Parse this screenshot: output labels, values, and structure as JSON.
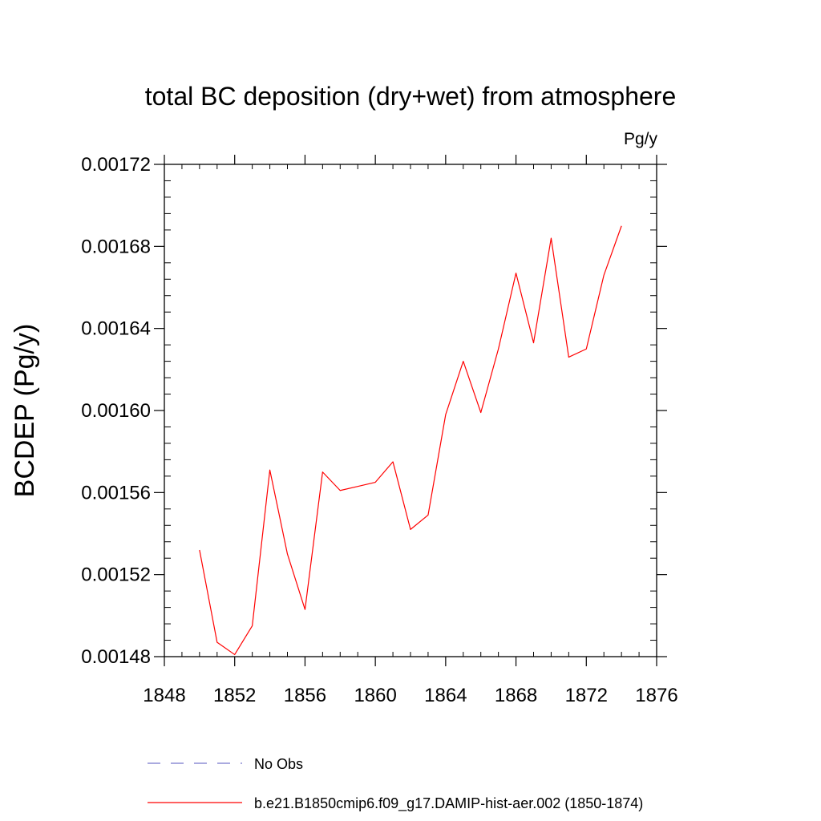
{
  "chart_data": {
    "type": "line",
    "title": "total BC deposition (dry+wet) from atmosphere",
    "units": "Pg/y",
    "ylabel": "BCDEP  (Pg/y)",
    "xlabel": "",
    "xlim": [
      1848,
      1876
    ],
    "ylim": [
      0.00148,
      0.00172
    ],
    "xticks": [
      1848,
      1852,
      1856,
      1860,
      1864,
      1868,
      1872,
      1876
    ],
    "xtick_labels": [
      "1848",
      "1852",
      "1856",
      "1860",
      "1864",
      "1868",
      "1872",
      "1876"
    ],
    "yticks": [
      0.00148,
      0.00152,
      0.00156,
      0.0016,
      0.00164,
      0.00168,
      0.00172
    ],
    "ytick_labels": [
      "0.00148",
      "0.00152",
      "0.00156",
      "0.00160",
      "0.00164",
      "0.00168",
      "0.00172"
    ],
    "grid": false,
    "legend_position": "bottom",
    "series": [
      {
        "name": "No Obs",
        "color": "#7777cc",
        "style": "dashed",
        "x": [],
        "values": []
      },
      {
        "name": "b.e21.B1850cmip6.f09_g17.DAMIP-hist-aer.002 (1850-1874)",
        "color": "#ff0000",
        "style": "solid",
        "x": [
          1850,
          1851,
          1852,
          1853,
          1854,
          1855,
          1856,
          1857,
          1858,
          1859,
          1860,
          1861,
          1862,
          1863,
          1864,
          1865,
          1866,
          1867,
          1868,
          1869,
          1870,
          1871,
          1872,
          1873,
          1874
        ],
        "values": [
          0.001532,
          0.001487,
          0.001481,
          0.001495,
          0.001571,
          0.00153,
          0.001503,
          0.00157,
          0.001561,
          0.001563,
          0.001565,
          0.001575,
          0.001542,
          0.001549,
          0.001598,
          0.001624,
          0.001599,
          0.00163,
          0.001667,
          0.001633,
          0.001684,
          0.001626,
          0.00163,
          0.001666,
          0.00169
        ]
      }
    ]
  }
}
